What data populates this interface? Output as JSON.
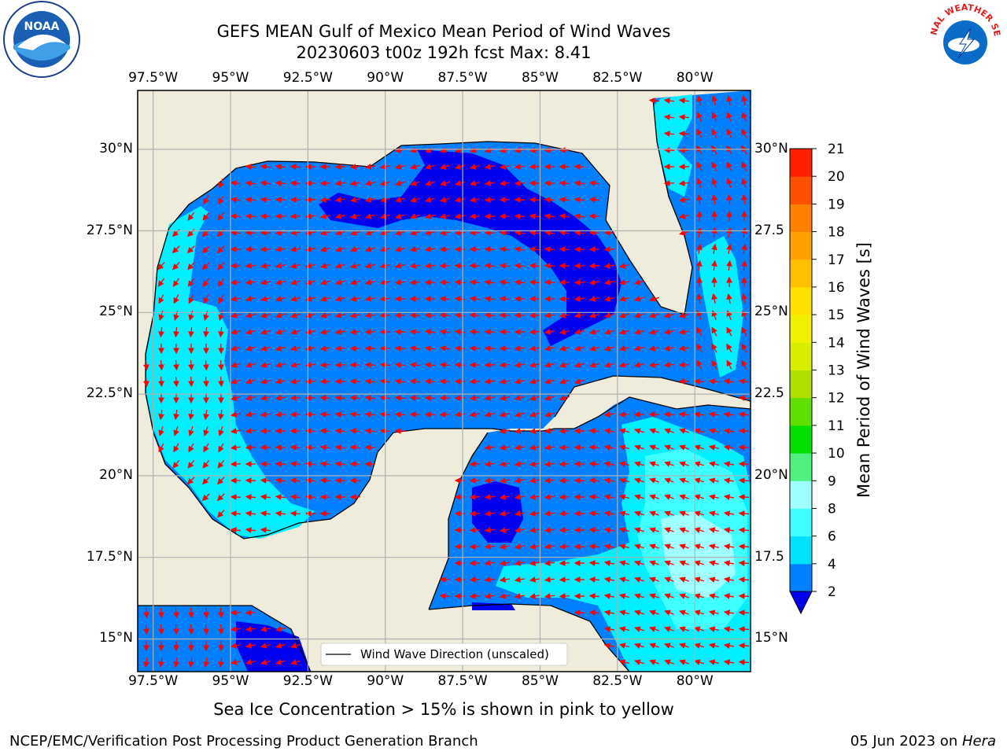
{
  "header": {
    "title_line1": "GEFS MEAN Gulf of Mexico Mean Period of Wind Waves",
    "title_line2": "20230603 t00z 192h fcst   Max: 8.41"
  },
  "map": {
    "lon_ticks": [
      "97.5°W",
      "95°W",
      "92.5°W",
      "90°W",
      "87.5°W",
      "85°W",
      "82.5°W",
      "80°W"
    ],
    "lon_values": [
      -97.5,
      -95,
      -92.5,
      -90,
      -87.5,
      -85,
      -82.5,
      -80
    ],
    "lat_ticks_left": [
      "30°N",
      "27.5°N",
      "25°N",
      "22.5°N",
      "20°N",
      "17.5°N",
      "15°N"
    ],
    "lat_ticks_right": [
      "30°N",
      "27.5",
      "25°N",
      "22.5",
      "20°N",
      "17.5",
      "15°N"
    ],
    "lat_values": [
      30,
      27.5,
      25,
      22.5,
      20,
      17.5,
      15
    ],
    "extent": {
      "lon_min": -98,
      "lon_max": -78.2,
      "lat_min": 14,
      "lat_max": 31.8
    },
    "legend_label": "Wind Wave Direction (unscaled)",
    "land_color": "#efecdc",
    "arrow_color": "#ff0000"
  },
  "colorbar": {
    "label": "Mean Period of Wind Waves [s]",
    "ticks": [
      "2",
      "4",
      "6",
      "8",
      "9",
      "10",
      "11",
      "12",
      "13",
      "14",
      "15",
      "16",
      "17",
      "18",
      "19",
      "20",
      "21"
    ],
    "colors": [
      "#0080ff",
      "#00e0ff",
      "#40ffff",
      "#a0ffff",
      "#50f080",
      "#00e000",
      "#60e000",
      "#b0e000",
      "#d8ee00",
      "#f0f000",
      "#ffe000",
      "#ffc000",
      "#ffa000",
      "#ff8000",
      "#ff5000",
      "#ff2000"
    ],
    "under_color": "#0000f0"
  },
  "footer": {
    "subtitle": "Sea Ice Concentration > 15% is shown in pink to yellow",
    "credit": "NCEP/EMC/Verification Post Processing Product Generation Branch",
    "stamp_date": "05 Jun 2023 on ",
    "stamp_machine": "Hera"
  },
  "logos": {
    "noaa_text": "NOAA",
    "nws_text": "NATIONAL WEATHER SERVICE"
  }
}
